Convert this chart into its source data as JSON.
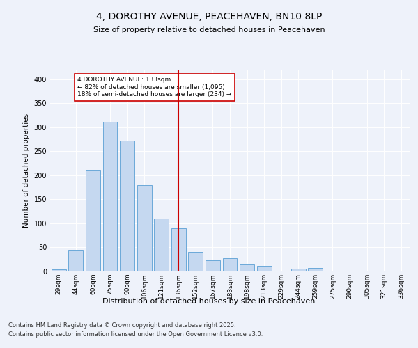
{
  "title": "4, DOROTHY AVENUE, PEACEHAVEN, BN10 8LP",
  "subtitle": "Size of property relative to detached houses in Peacehaven",
  "xlabel": "Distribution of detached houses by size in Peacehaven",
  "ylabel": "Number of detached properties",
  "categories": [
    "29sqm",
    "44sqm",
    "60sqm",
    "75sqm",
    "90sqm",
    "106sqm",
    "121sqm",
    "136sqm",
    "152sqm",
    "167sqm",
    "183sqm",
    "198sqm",
    "213sqm",
    "229sqm",
    "244sqm",
    "259sqm",
    "275sqm",
    "290sqm",
    "305sqm",
    "321sqm",
    "336sqm"
  ],
  "values": [
    5,
    45,
    212,
    312,
    272,
    180,
    110,
    90,
    40,
    23,
    27,
    14,
    11,
    0,
    6,
    7,
    2,
    1,
    0,
    0,
    2
  ],
  "bar_color": "#c5d8f0",
  "bar_edge_color": "#5a9fd4",
  "vline_x": 7,
  "vline_color": "#cc0000",
  "annotation_lines": [
    "4 DOROTHY AVENUE: 133sqm",
    "← 82% of detached houses are smaller (1,095)",
    "18% of semi-detached houses are larger (234) →"
  ],
  "annotation_box_color": "#cc0000",
  "background_color": "#eef2fa",
  "grid_color": "#ffffff",
  "ylim": [
    0,
    420
  ],
  "yticks": [
    0,
    50,
    100,
    150,
    200,
    250,
    300,
    350,
    400
  ],
  "footer_line1": "Contains HM Land Registry data © Crown copyright and database right 2025.",
  "footer_line2": "Contains public sector information licensed under the Open Government Licence v3.0."
}
